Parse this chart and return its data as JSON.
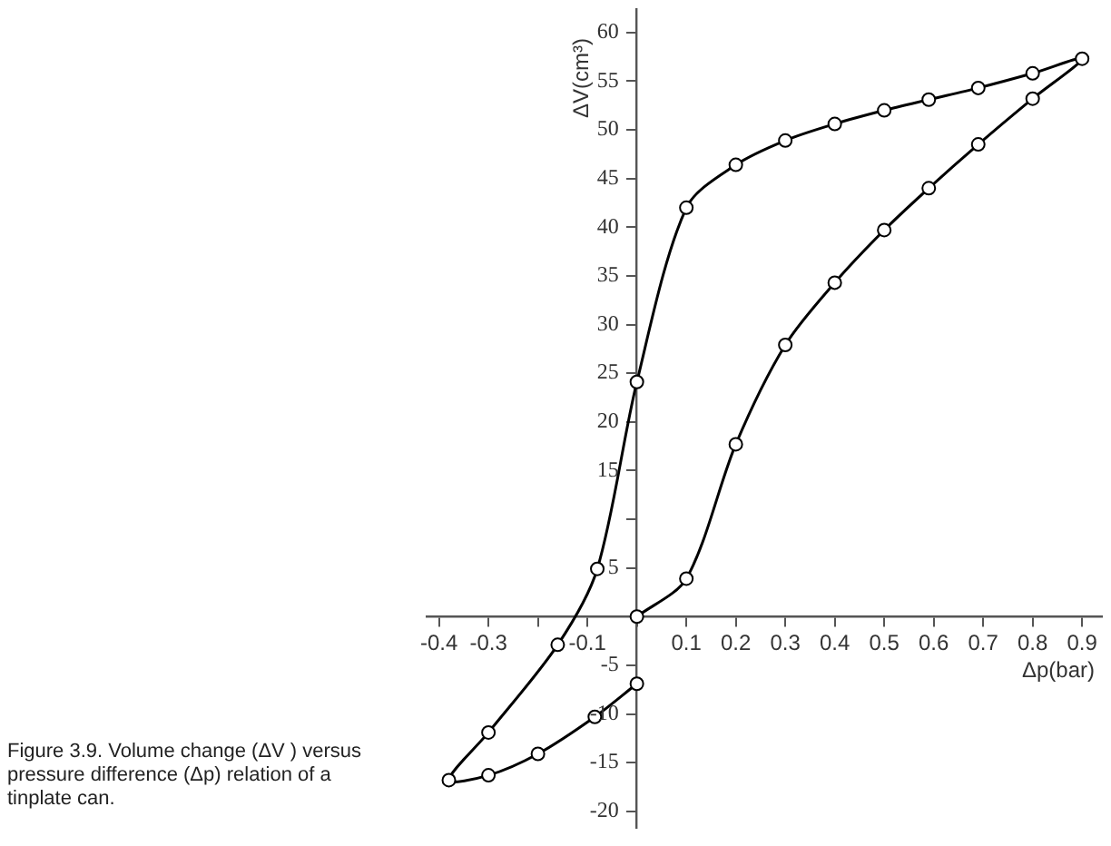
{
  "chart_data": {
    "type": "line",
    "xlabel": "Δp(bar)",
    "ylabel": "ΔV(cm³)",
    "annotations": [
      "Figure 3.9.  Volume change (ΔV ) versus pressure difference (Δp) relation of a tinplate can."
    ],
    "series": [
      {
        "color": "#000000",
        "x": [
          0,
          0.1,
          0.2,
          0.3,
          0.4,
          0.5,
          0.59,
          0.69,
          0.8,
          0.9,
          0.8,
          0.69,
          0.59,
          0.5,
          0.4,
          0.3,
          0.2,
          0.1,
          0,
          -0.08,
          -0.16,
          -0.3,
          -0.38,
          -0.3,
          -0.2,
          -0.085,
          0
        ],
        "values": [
          0,
          3.9,
          17.7,
          27.9,
          34.3,
          39.7,
          44.0,
          48.5,
          53.2,
          57.3,
          55.8,
          54.3,
          53.1,
          52.0,
          50.6,
          48.9,
          46.4,
          42.0,
          24.1,
          4.9,
          -2.9,
          -11.9,
          -16.8,
          -16.3,
          -14.1,
          -10.3,
          -6.9
        ]
      }
    ],
    "xlim": [
      -0.425,
      0.94
    ],
    "ylim": [
      -21.7,
      62.4
    ],
    "xticks": [
      -0.4,
      -0.3,
      {
        "value": -0.2,
        "label": null
      },
      -0.1,
      {
        "value": 0,
        "label": null
      },
      0.1,
      0.2,
      0.3,
      0.4,
      0.5,
      0.6,
      0.7,
      0.8,
      0.9
    ],
    "yticks": [
      -20,
      -15,
      -10,
      -5,
      {
        "value": 0,
        "label": null
      },
      5,
      {
        "value": 10,
        "label": null
      },
      15,
      20,
      25,
      30,
      35,
      40,
      45,
      50,
      55,
      60
    ],
    "grid": false,
    "legend": false,
    "marker": "circle",
    "line_style": "solid"
  }
}
